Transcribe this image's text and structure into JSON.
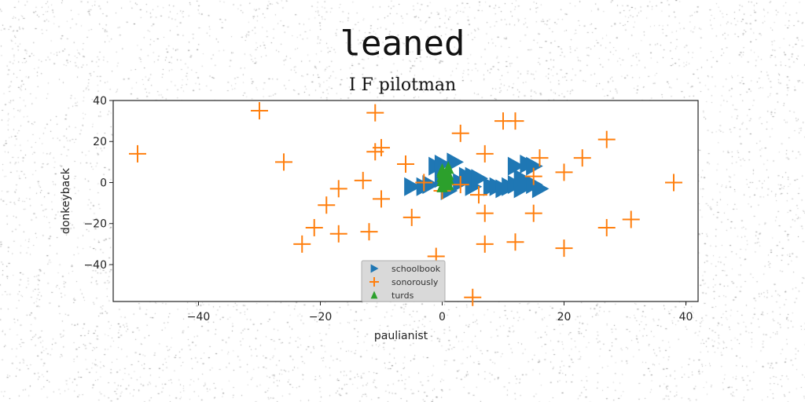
{
  "suptitle": "leaned",
  "chart_data": {
    "type": "scatter",
    "title": "I F pilotman",
    "xlabel": "paulianist",
    "ylabel": "donkeyback",
    "xlim": [
      -54,
      42
    ],
    "ylim": [
      -58,
      40
    ],
    "xticks": [
      -40,
      -20,
      0,
      20,
      40
    ],
    "yticks": [
      40,
      20,
      0,
      -20,
      -40
    ],
    "grid": false,
    "legend_placement": "bottom-center",
    "series": [
      {
        "name": "schoolbook",
        "marker": "triangle-right",
        "color": "#1f77b4",
        "points": [
          [
            -5,
            -2
          ],
          [
            -3,
            -2
          ],
          [
            -2,
            -1
          ],
          [
            -1,
            8
          ],
          [
            0,
            9
          ],
          [
            0,
            2
          ],
          [
            1,
            0
          ],
          [
            1,
            -4
          ],
          [
            2,
            10
          ],
          [
            3,
            0
          ],
          [
            4,
            3
          ],
          [
            5,
            -2
          ],
          [
            5,
            3
          ],
          [
            6,
            2
          ],
          [
            8,
            -2
          ],
          [
            9,
            -2
          ],
          [
            10,
            -3
          ],
          [
            11,
            -2
          ],
          [
            12,
            -1
          ],
          [
            12,
            8
          ],
          [
            13,
            -3
          ],
          [
            13,
            2
          ],
          [
            14,
            9
          ],
          [
            14,
            0
          ],
          [
            15,
            -1
          ],
          [
            15,
            8
          ],
          [
            16,
            -3
          ]
        ]
      },
      {
        "name": "sonorously",
        "marker": "plus",
        "color": "#ff7f0e",
        "points": [
          [
            -50,
            14
          ],
          [
            -30,
            35
          ],
          [
            -26,
            10
          ],
          [
            -23,
            -30
          ],
          [
            -21,
            -22
          ],
          [
            -19,
            -11
          ],
          [
            -17,
            -25
          ],
          [
            -17,
            -3
          ],
          [
            -13,
            1
          ],
          [
            -12,
            -24
          ],
          [
            -11,
            34
          ],
          [
            -11,
            15
          ],
          [
            -10,
            17
          ],
          [
            -10,
            -8
          ],
          [
            -6,
            9
          ],
          [
            -5,
            -17
          ],
          [
            -3,
            0
          ],
          [
            -1,
            -36
          ],
          [
            0,
            -4
          ],
          [
            3,
            -1
          ],
          [
            3,
            24
          ],
          [
            5,
            -56
          ],
          [
            6,
            -6
          ],
          [
            7,
            -15
          ],
          [
            7,
            -30
          ],
          [
            7,
            14
          ],
          [
            10,
            30
          ],
          [
            12,
            30
          ],
          [
            12,
            -29
          ],
          [
            15,
            3
          ],
          [
            15,
            -15
          ],
          [
            16,
            12
          ],
          [
            20,
            -32
          ],
          [
            20,
            5
          ],
          [
            23,
            12
          ],
          [
            27,
            -22
          ],
          [
            27,
            21
          ],
          [
            31,
            -18
          ],
          [
            38,
            0
          ]
        ]
      },
      {
        "name": "turds",
        "marker": "triangle-up",
        "color": "#2ca02c",
        "points": [
          [
            0,
            3
          ],
          [
            0,
            5
          ],
          [
            1,
            4
          ],
          [
            1,
            7
          ],
          [
            0,
            1
          ],
          [
            1,
            2
          ],
          [
            0,
            -2
          ],
          [
            1,
            -1
          ],
          [
            0,
            6
          ]
        ]
      }
    ]
  }
}
